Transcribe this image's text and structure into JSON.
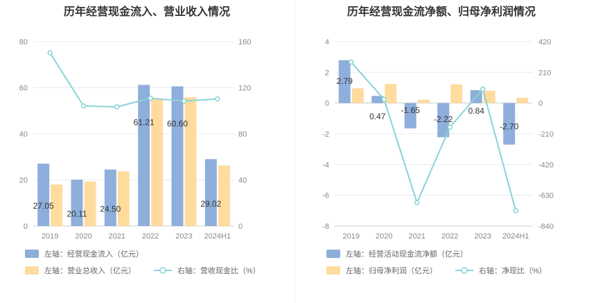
{
  "colors": {
    "bar_primary": "#8eaedb",
    "bar_secondary": "#ffdb9e",
    "line": "#89d3d8",
    "grid": "#e8ebf0",
    "text": "#333333",
    "tick": "#888888"
  },
  "chart_data": [
    {
      "type": "bar",
      "title": "历年经营现金流入、营业收入情况",
      "categories": [
        "2019",
        "2020",
        "2021",
        "2022",
        "2023",
        "2024H1"
      ],
      "y_left": {
        "ticks": [
          0,
          20,
          40,
          60,
          80
        ],
        "ylim": [
          0,
          80
        ]
      },
      "y_right": {
        "ticks": [
          0,
          40,
          80,
          120,
          160
        ],
        "ylim": [
          0,
          160
        ]
      },
      "grid": true,
      "legend_position": "bottom",
      "series": [
        {
          "name": "左轴：经营现金流入（亿元）",
          "type": "bar",
          "axis": "left",
          "color": "#8eaedb",
          "values": [
            27.05,
            20.11,
            24.5,
            61.21,
            60.6,
            29.02
          ],
          "labels": [
            "27.05",
            "20.11",
            "24.50",
            "61.21",
            "60.60",
            "29.02"
          ]
        },
        {
          "name": "左轴：营业总收入（亿元）",
          "type": "bar",
          "axis": "left",
          "color": "#ffdb9e",
          "values": [
            18.0,
            19.3,
            23.7,
            55.2,
            55.9,
            26.3
          ]
        },
        {
          "name": "右轴：营收现金比（%）",
          "type": "line",
          "axis": "right",
          "color": "#89d3d8",
          "values": [
            150.3,
            104.2,
            103.4,
            110.9,
            108.4,
            110.3
          ]
        }
      ]
    },
    {
      "type": "bar",
      "title": "历年经营现金流净额、归母净利润情况",
      "categories": [
        "2019",
        "2020",
        "2021",
        "2022",
        "2023",
        "2024H1"
      ],
      "y_left": {
        "ticks": [
          -8,
          -6,
          -4,
          -2,
          0,
          2,
          4
        ],
        "ylim": [
          -8,
          4
        ]
      },
      "y_right": {
        "ticks": [
          -840,
          -630,
          -420,
          -210,
          0,
          210,
          420
        ],
        "ylim": [
          -840,
          420
        ]
      },
      "grid": true,
      "legend_position": "bottom",
      "series": [
        {
          "name": "左轴：经营活动现金流净额（亿元）",
          "type": "bar",
          "axis": "left",
          "color": "#8eaedb",
          "values": [
            2.79,
            0.47,
            -1.65,
            -2.22,
            0.84,
            -2.7
          ],
          "labels": [
            "2.79",
            "0.47",
            "-1.65",
            "-2.22",
            "0.84",
            "-2.70"
          ]
        },
        {
          "name": "左轴：归母净利润（亿元）",
          "type": "bar",
          "axis": "left",
          "color": "#ffdb9e",
          "values": [
            0.96,
            1.25,
            0.22,
            1.22,
            0.8,
            0.35
          ]
        },
        {
          "name": "右轴：净现比（%）",
          "type": "line",
          "axis": "right",
          "color": "#89d3d8",
          "values": [
            280,
            25,
            -680,
            -165,
            95,
            -735
          ]
        }
      ]
    }
  ]
}
